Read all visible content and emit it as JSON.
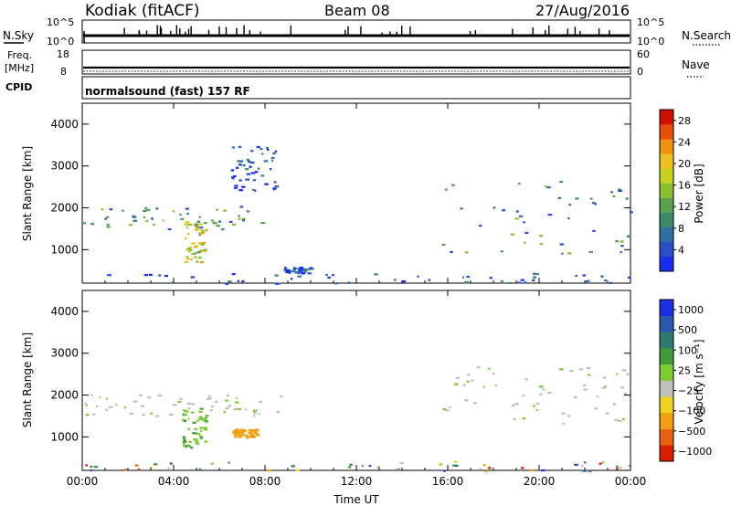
{
  "header": {
    "station": "Kodiak (fitACF)",
    "beam": "Beam 08",
    "date": "27/Aug/2016"
  },
  "param_panels": {
    "nsky_label": "N.Sky",
    "nsky_ticks": [
      "10^5",
      "10^0"
    ],
    "nsearch_label": "N.Search",
    "nsearch_ticks": [
      "10^5",
      "10^0"
    ],
    "freq_label": "Freq.",
    "freq_unit": "[MHz]",
    "freq_ticks": [
      "18",
      "8"
    ],
    "nave_label": "Nave",
    "nave_ticks": [
      "60",
      "0"
    ],
    "cpid_label": "CPID",
    "cpid_value": "normalsound (fast) 157 RF"
  },
  "colors": {
    "power": [
      "#1a2cf0",
      "#2a50c8",
      "#2f6fa8",
      "#3f8a6a",
      "#5aa050",
      "#8cc030",
      "#c8d020",
      "#f0c020",
      "#f09010",
      "#e85008",
      "#d01000"
    ],
    "velocity": [
      "#1c2fe0",
      "#2a5ab0",
      "#2f7a70",
      "#3f9a3a",
      "#7ccc30",
      "#c0c0b8",
      "#f0d020",
      "#f0a010",
      "#e86010",
      "#d82000"
    ]
  },
  "chart_data": [
    {
      "type": "heatmap",
      "name": "power_panel",
      "ylabel": "Slant Range [km]",
      "xlabel": "",
      "x_ticks": [
        "00:00",
        "04:00",
        "08:00",
        "12:00",
        "16:00",
        "20:00",
        "00:00"
      ],
      "y_ticks": [
        "1000",
        "2000",
        "3000",
        "4000"
      ],
      "xlim": [
        0,
        24
      ],
      "ylim": [
        200,
        4500
      ],
      "colorbar": {
        "label": "Power [dB]",
        "ticks": [
          "4",
          "8",
          "12",
          "16",
          "20",
          "24",
          "28"
        ],
        "range": [
          0,
          30
        ]
      },
      "regions": [
        {
          "t": [
            0.0,
            8.7
          ],
          "r": [
            1500,
            2050
          ],
          "level": "mixed"
        },
        {
          "t": [
            4.4,
            5.4
          ],
          "r": [
            700,
            1700
          ],
          "level": "high"
        },
        {
          "t": [
            6.5,
            8.5
          ],
          "r": [
            2400,
            3500
          ],
          "level": "low"
        },
        {
          "t": [
            8.8,
            10.0
          ],
          "r": [
            450,
            600
          ],
          "level": "low"
        },
        {
          "t": [
            15.6,
            24.0
          ],
          "r": [
            900,
            2700
          ],
          "level": "mixed"
        },
        {
          "t": [
            0.0,
            24.0
          ],
          "r": [
            200,
            450
          ],
          "level": "low"
        }
      ]
    },
    {
      "type": "heatmap",
      "name": "velocity_panel",
      "ylabel": "Slant Range [km]",
      "xlabel": "Time UT",
      "x_ticks": [
        "00:00",
        "04:00",
        "08:00",
        "12:00",
        "16:00",
        "20:00",
        "00:00"
      ],
      "y_ticks": [
        "1000",
        "2000",
        "3000",
        "4000"
      ],
      "xlim": [
        0,
        24
      ],
      "ylim": [
        200,
        4500
      ],
      "colorbar": {
        "label": "Velocity [m s⁻¹]",
        "ticks": [
          "1000",
          "500",
          "100",
          "25",
          "−25",
          "−100",
          "−500",
          "−1000"
        ]
      },
      "regions": [
        {
          "t": [
            0.0,
            8.7
          ],
          "r": [
            1500,
            2050
          ],
          "level": "near_zero"
        },
        {
          "t": [
            4.3,
            5.4
          ],
          "r": [
            700,
            1700
          ],
          "level": "toward"
        },
        {
          "t": [
            6.5,
            7.6
          ],
          "r": [
            1000,
            1200
          ],
          "level": "away"
        },
        {
          "t": [
            15.6,
            24.0
          ],
          "r": [
            1300,
            2700
          ],
          "level": "near_zero"
        },
        {
          "t": [
            0.0,
            24.0
          ],
          "r": [
            200,
            450
          ],
          "level": "mixed"
        }
      ]
    }
  ]
}
